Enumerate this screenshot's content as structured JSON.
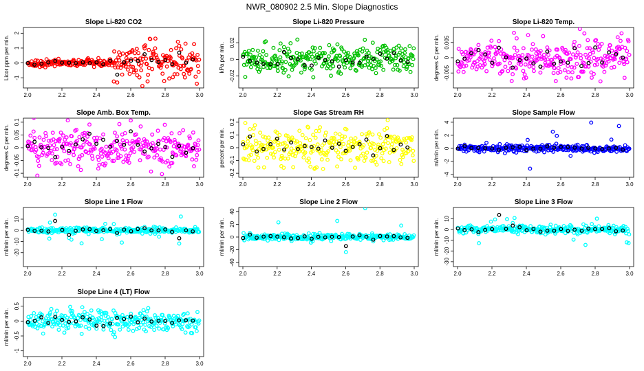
{
  "figure": {
    "title": "NWR_080902  2.5 Min. Slope Diagnostics",
    "x_range": [
      2.0,
      3.0
    ],
    "point_count": 300,
    "overlay_every": 12
  },
  "chart_data": [
    {
      "type": "scatter",
      "title": "Slope Li-820 CO2",
      "ylabel": "Licor ppm per min.",
      "color": "#ff0000",
      "ylim": [
        -1.5,
        2.2
      ],
      "yticks": [
        -1,
        0,
        1,
        2
      ],
      "xticks": [
        2.0,
        2.2,
        2.4,
        2.6,
        2.8,
        3.0
      ],
      "base_sd": 0.12,
      "late_sd": 0.6,
      "late_from": 2.5,
      "overlay": "black-circles"
    },
    {
      "type": "scatter",
      "title": "Slope Li-820 Pressure",
      "ylabel": "kPa per min.",
      "color": "#00c000",
      "ylim": [
        -0.031,
        0.035
      ],
      "yticks": [
        -0.02,
        0.0,
        0.02
      ],
      "xticks": [
        2.0,
        2.2,
        2.4,
        2.6,
        2.8,
        3.0
      ],
      "base_sd": 0.008,
      "overlay": "black-circles"
    },
    {
      "type": "scatter",
      "title": "Slope Li-820 Temp.",
      "ylabel": "degrees C per min.",
      "color": "#ff00ff",
      "ylim": [
        -0.009,
        0.009
      ],
      "yticks": [
        -0.005,
        0.0,
        0.005
      ],
      "xticks": [
        2.0,
        2.2,
        2.4,
        2.6,
        2.8,
        3.0
      ],
      "base_sd": 0.003,
      "overlay": "black-circles"
    },
    {
      "type": "scatter",
      "title": "Slope Amb. Box Temp.",
      "ylabel": "degrees C per min.",
      "color": "#ff00ff",
      "ylim": [
        -0.105,
        0.105
      ],
      "yticks": [
        -0.1,
        -0.05,
        0.0,
        0.05,
        0.1
      ],
      "xticks": [
        2.0,
        2.2,
        2.4,
        2.6,
        2.8,
        3.0
      ],
      "base_sd": 0.04,
      "overlay": "black-circles"
    },
    {
      "type": "scatter",
      "title": "Slope Gas Stream RH",
      "ylabel": "percent per min.",
      "color": "#ffff00",
      "ylim": [
        -0.21,
        0.21
      ],
      "yticks": [
        -0.2,
        -0.1,
        0.0,
        0.1,
        0.2
      ],
      "xticks": [
        2.0,
        2.2,
        2.4,
        2.6,
        2.8,
        3.0
      ],
      "base_sd": 0.07,
      "overlay": "black-circles"
    },
    {
      "type": "scatter",
      "title": "Slope Sample Flow",
      "ylabel": "ml/min per min.",
      "color": "#0000ff",
      "ylim": [
        -4.0,
        4.2
      ],
      "yticks": [
        -4,
        -2,
        0,
        2,
        4
      ],
      "xticks": [
        2.0,
        2.2,
        2.4,
        2.6,
        2.8,
        3.0
      ],
      "base_sd": 0.25,
      "outlier_sd": 2.0,
      "overlay": "black-circles"
    },
    {
      "type": "scatter",
      "title": "Slope Line 1 Flow",
      "ylabel": "ml/min per min.",
      "color": "#00ffff",
      "ylim": [
        -30,
        18
      ],
      "yticks": [
        -20,
        -10,
        0,
        10
      ],
      "xticks": [
        2.0,
        2.2,
        2.4,
        2.6,
        2.8,
        3.0
      ],
      "base_sd": 1.2,
      "outlier_sd": 9,
      "overlay": "black-circles"
    },
    {
      "type": "scatter",
      "title": "Slope Line 2 Flow",
      "ylabel": "ml/min per min.",
      "color": "#00ffff",
      "ylim": [
        -42,
        42
      ],
      "yticks": [
        -40,
        -20,
        0,
        20,
        40
      ],
      "xticks": [
        2.0,
        2.2,
        2.4,
        2.6,
        2.8,
        3.0
      ],
      "base_sd": 2.5,
      "outlier_sd": 15,
      "overlay": "black-circles"
    },
    {
      "type": "scatter",
      "title": "Slope Line 3 Flow",
      "ylabel": "ml/min per min.",
      "color": "#00ffff",
      "ylim": [
        -32,
        18
      ],
      "yticks": [
        -30,
        -20,
        -10,
        0,
        10
      ],
      "xticks": [
        2.0,
        2.2,
        2.4,
        2.6,
        2.8,
        3.0
      ],
      "base_sd": 1.8,
      "outlier_sd": 10,
      "overlay": "black-circles"
    },
    {
      "type": "scatter",
      "title": "Slope Line 4 (LT) Flow",
      "ylabel": "ml/min per min.",
      "color": "#00ffff",
      "ylim": [
        -1.1,
        0.7
      ],
      "yticks": [
        -1.0,
        -0.5,
        0.0,
        0.5
      ],
      "xticks": [
        2.0,
        2.2,
        2.4,
        2.6,
        2.8,
        3.0
      ],
      "base_sd": 0.18,
      "overlay": "black-circles"
    }
  ]
}
